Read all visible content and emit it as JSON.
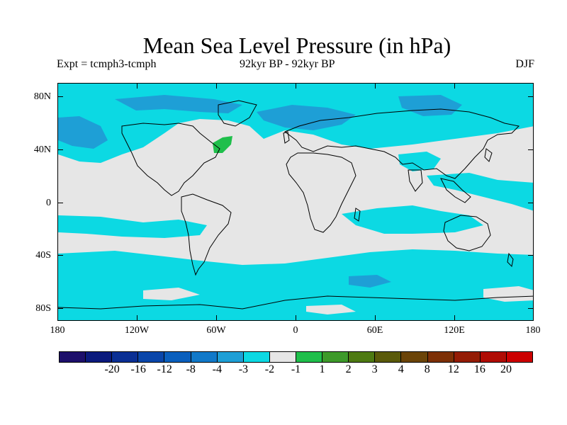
{
  "title": "Mean Sea Level Pressure (in hPa)",
  "subtitle_left": "Expt = tcmph3-tcmph",
  "subtitle_center": "92kyr BP - 92kyr BP",
  "subtitle_right": "DJF",
  "lat_labels": [
    "80N",
    "40N",
    "0",
    "40S",
    "80S"
  ],
  "lon_labels": [
    "180",
    "120W",
    "60W",
    "0",
    "60E",
    "120E",
    "180"
  ],
  "colorbar": {
    "colors": [
      "#1d0f6b",
      "#0b1a7d",
      "#0a2f94",
      "#0a46aa",
      "#0a5fbd",
      "#1179c9",
      "#1e9fd6",
      "#0cd9e3",
      "#e6e6e6",
      "#1fbf4b",
      "#3d9a2a",
      "#4d7a12",
      "#5a5a0a",
      "#6b4408",
      "#7d3006",
      "#941c05",
      "#b00c04",
      "#cc0000"
    ],
    "labels": [
      "-20",
      "-16",
      "-12",
      "-8",
      "-4",
      "-3",
      "-2",
      "-1",
      "1",
      "2",
      "3",
      "4",
      "8",
      "12",
      "16",
      "20"
    ]
  },
  "map_colors": {
    "background": "#e6e6e6",
    "neg_light": "#0cd9e3",
    "neg_medium": "#1e9fd6",
    "neg_dark": "#1179c9",
    "pos": "#1fbf4b",
    "coast": "#000000"
  }
}
